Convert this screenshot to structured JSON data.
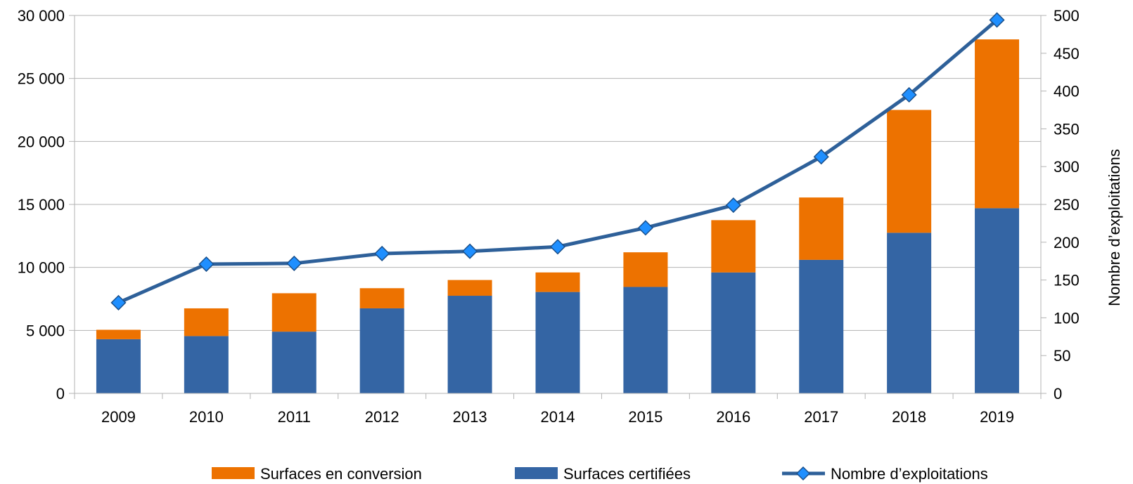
{
  "chart_data": {
    "type": "bar",
    "stacked": true,
    "categories": [
      "2009",
      "2010",
      "2011",
      "2012",
      "2013",
      "2014",
      "2015",
      "2016",
      "2017",
      "2018",
      "2019"
    ],
    "series": [
      {
        "name": "Surfaces certifiées",
        "kind": "bar",
        "axis": "left",
        "color": "#3465a4",
        "values": [
          4300,
          4550,
          4900,
          6750,
          7750,
          8050,
          8450,
          9600,
          10600,
          12750,
          14700
        ]
      },
      {
        "name": "Surfaces en conversion",
        "kind": "bar",
        "axis": "left",
        "color": "#ed7200",
        "values": [
          750,
          2200,
          3050,
          1600,
          1250,
          1550,
          2750,
          4150,
          4950,
          9750,
          13400
        ]
      },
      {
        "name": "Nombre d’exploitations",
        "kind": "line",
        "axis": "right",
        "color": "#2e6099",
        "marker_color": "#1f8fff",
        "values": [
          120,
          171,
          172,
          185,
          188,
          194,
          219,
          249,
          313,
          395,
          494
        ]
      }
    ],
    "y_left": {
      "range": [
        0,
        30000
      ],
      "ticks": [
        0,
        5000,
        10000,
        15000,
        20000,
        25000,
        30000
      ],
      "tick_labels": [
        "0",
        "5 000",
        "10 000",
        "15 000",
        "20 000",
        "25 000",
        "30 000"
      ]
    },
    "y_right": {
      "range": [
        0,
        500
      ],
      "ticks": [
        0,
        50,
        100,
        150,
        200,
        250,
        300,
        350,
        400,
        450,
        500
      ],
      "tick_labels": [
        "0",
        "50",
        "100",
        "150",
        "200",
        "250",
        "300",
        "350",
        "400",
        "450",
        "500"
      ],
      "label": "Nombre d’exploitations"
    },
    "legend": {
      "placement": "bottom",
      "entries": [
        "Surfaces en conversion",
        "Surfaces certifiées",
        "Nombre d’exploitations"
      ]
    },
    "grid": true
  }
}
